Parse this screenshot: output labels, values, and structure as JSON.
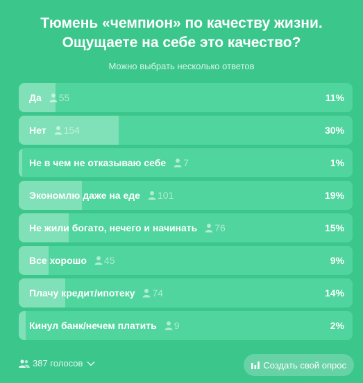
{
  "poll": {
    "title_line1": "Тюмень «чемпион» по качеству жизни.",
    "title_line2": "Ощущаете на себе это качество?",
    "subtitle": "Можно выбрать несколько ответов",
    "options": [
      {
        "label": "Да",
        "votes": "55",
        "percent": "11%",
        "share": 0.11
      },
      {
        "label": "Нет",
        "votes": "154",
        "percent": "30%",
        "share": 0.3
      },
      {
        "label": "Не в чем не отказываю себе",
        "votes": "7",
        "percent": "1%",
        "share": 0.01
      },
      {
        "label": "Экономлю даже на еде",
        "votes": "101",
        "percent": "19%",
        "share": 0.19
      },
      {
        "label": "Не жили богато, нечего и начинать",
        "votes": "76",
        "percent": "15%",
        "share": 0.15
      },
      {
        "label": "Все хорошо",
        "votes": "45",
        "percent": "9%",
        "share": 0.09
      },
      {
        "label": "Плачу кредит/ипотеку",
        "votes": "74",
        "percent": "14%",
        "share": 0.14
      },
      {
        "label": "Кинул банк/нечем платить",
        "votes": "9",
        "percent": "2%",
        "share": 0.02
      }
    ],
    "total_votes": "387 голосов",
    "create_button": "Создать свой опрос"
  },
  "icons": {
    "voters": "person-icon",
    "total": "group-icon",
    "expand": "chevron-down-icon",
    "create": "bar-chart-icon"
  },
  "colors": {
    "background": "#3bc68c",
    "option": "#4fd59d",
    "text": "#ffffff"
  }
}
